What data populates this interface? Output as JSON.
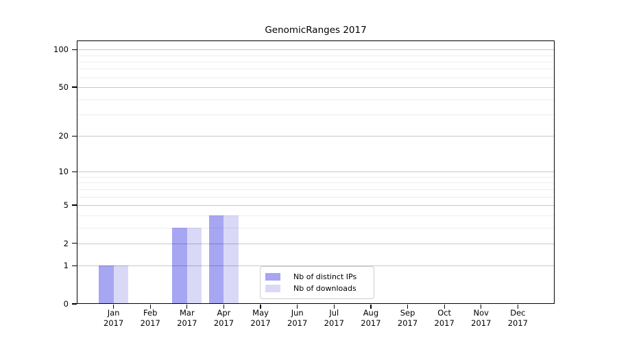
{
  "title": "GenomicRanges 2017",
  "chart_data": {
    "type": "bar",
    "title": "GenomicRanges 2017",
    "x_categories": [
      {
        "month": "Jan",
        "year": "2017"
      },
      {
        "month": "Feb",
        "year": "2017"
      },
      {
        "month": "Mar",
        "year": "2017"
      },
      {
        "month": "Apr",
        "year": "2017"
      },
      {
        "month": "May",
        "year": "2017"
      },
      {
        "month": "Jun",
        "year": "2017"
      },
      {
        "month": "Jul",
        "year": "2017"
      },
      {
        "month": "Aug",
        "year": "2017"
      },
      {
        "month": "Sep",
        "year": "2017"
      },
      {
        "month": "Oct",
        "year": "2017"
      },
      {
        "month": "Nov",
        "year": "2017"
      },
      {
        "month": "Dec",
        "year": "2017"
      }
    ],
    "series": [
      {
        "name": "Nb of distinct IPs",
        "color": "#a6a6f2",
        "values": [
          1,
          0,
          3,
          4,
          0,
          0,
          0,
          0,
          0,
          0,
          0,
          0
        ]
      },
      {
        "name": "Nb of downloads",
        "color": "#d9d9f7",
        "values": [
          1,
          0,
          3,
          4,
          0,
          0,
          0,
          0,
          0,
          0,
          0,
          0
        ]
      }
    ],
    "y_axis": {
      "scale": "log10(1+x)",
      "ticks": [
        {
          "value": 100,
          "label": "100"
        },
        {
          "value": 50,
          "label": "50"
        },
        {
          "value": 20,
          "label": "20"
        },
        {
          "value": 10,
          "label": "10"
        },
        {
          "value": 5,
          "label": "5"
        },
        {
          "value": 2,
          "label": "2"
        },
        {
          "value": 1,
          "label": "1"
        },
        {
          "value": 0,
          "label": "0"
        }
      ],
      "minor_gridlines": [
        3,
        4,
        6,
        7,
        8,
        9,
        30,
        40,
        60,
        70,
        80,
        90
      ],
      "max": 117
    },
    "grid": "horizontal",
    "legend_position": "bottom-center",
    "colors": {
      "major_grid": "rgba(0,0,0,0.22)",
      "minor_grid": "rgba(0,0,0,0.07)",
      "spine": "#000000"
    }
  }
}
